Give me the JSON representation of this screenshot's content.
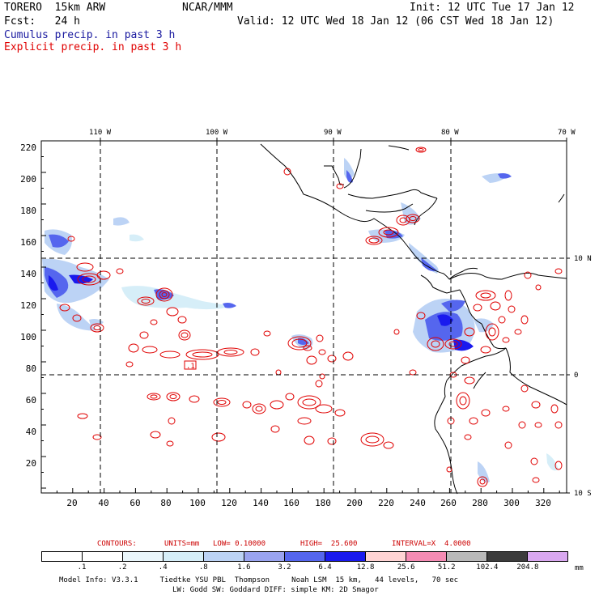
{
  "header": {
    "model": "TORERO  15km ARW",
    "org": "NCAR/MMM",
    "init": "Init: 12 UTC Tue 17 Jan 12",
    "fcst": "Fcst:   24 h",
    "valid": "Valid: 12 UTC Wed 18 Jan 12 (06 CST Wed 18 Jan 12)",
    "field1": "Cumulus precip. in past 3 h",
    "field2": "Explicit precip. in past 3 h",
    "field1_color": "#1a1aa0",
    "field2_color": "#e00000"
  },
  "map": {
    "top_lon_labels": [
      "110 W",
      "100 W",
      "90 W",
      "80 W",
      "70 W"
    ],
    "right_lat_labels": [
      "10 N",
      "0",
      "10 S"
    ],
    "left_y_labels": [
      "220",
      "200",
      "180",
      "160",
      "140",
      "120",
      "100",
      "80",
      "60",
      "40",
      "20"
    ],
    "bottom_x_labels": [
      "20",
      "40",
      "60",
      "80",
      "100",
      "120",
      "140",
      "160",
      "180",
      "200",
      "220",
      "240",
      "260",
      "280",
      "300",
      "320"
    ],
    "box_label": ".1"
  },
  "contours": {
    "label": "CONTOURS:",
    "units": "UNITS=mm",
    "low": "LOW= 0.10000",
    "high": "HIGH=  25.600",
    "interval": "INTERVAL=X  4.0000",
    "color": "#cc0000"
  },
  "colorbar": {
    "labels": [
      ".1",
      ".2",
      ".4",
      ".8",
      "1.6",
      "3.2",
      "6.4",
      "12.8",
      "25.6",
      "51.2",
      "102.4",
      "204.8"
    ],
    "colors": [
      "#ffffff",
      "#ffffff",
      "#eaf6fb",
      "#d6eef8",
      "#bcd3f5",
      "#9aa4f0",
      "#5566ee",
      "#1a1aee",
      "#ffd4d4",
      "#f58cb4",
      "#b9b9b9",
      "#3c3c3c",
      "#d9a8f0"
    ],
    "units": "mm"
  },
  "footer": {
    "line1": "Model Info: V3.3.1     Tiedtke YSU PBL  Thompson     Noah LSM  15 km,   44 levels,   70 sec",
    "line2": "LW: Godd SW: Goddard DIFF: simple KM: 2D Smagor"
  }
}
